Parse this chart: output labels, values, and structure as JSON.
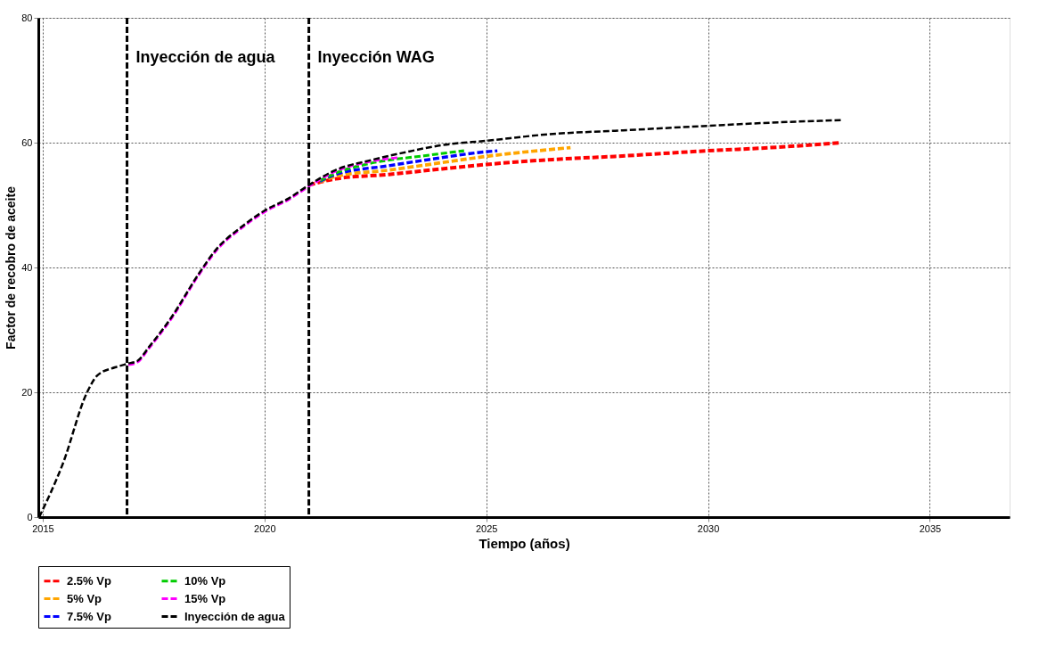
{
  "chart_data": {
    "type": "line",
    "xlabel": "Tiempo (años)",
    "ylabel": "Factor de recobro de aceite",
    "xlim": [
      2014.9,
      2036.8
    ],
    "ylim": [
      0,
      80
    ],
    "xticks": [
      2015,
      2020,
      2025,
      2030,
      2035
    ],
    "yticks": [
      0,
      20,
      40,
      60,
      80
    ],
    "grid": true,
    "legend": "bottom",
    "marker": "none",
    "line_style": "dashed",
    "ref_lines": [
      {
        "axis": "x",
        "value": 2016.9,
        "label": "Inyección de agua",
        "color": "#000000",
        "line_style": "dashed"
      },
      {
        "axis": "x",
        "value": 2021.0,
        "label": "Inyección WAG",
        "color": "#000000",
        "line_style": "dashed"
      }
    ],
    "series": [
      {
        "name": "2.5% Vp",
        "color": "#ff0000",
        "x": [
          2021.0,
          2021.6,
          2022.8,
          2024.0,
          2025.0,
          2026.5,
          2027.9,
          2030.0,
          2031.4,
          2033.0
        ],
        "values": [
          53.2,
          54.2,
          54.9,
          55.8,
          56.5,
          57.3,
          57.8,
          58.7,
          59.2,
          60.0
        ]
      },
      {
        "name": "5% Vp",
        "color": "#ffa500",
        "x": [
          2021.25,
          2021.6,
          2022.8,
          2024.0,
          2025.0,
          2026.9
        ],
        "values": [
          53.7,
          54.6,
          55.6,
          56.8,
          57.8,
          59.2
        ]
      },
      {
        "name": "7.5% Vp",
        "color": "#0000ff",
        "x": [
          2021.25,
          2021.6,
          2022.8,
          2024.0,
          2024.8,
          2025.25
        ],
        "values": [
          53.8,
          54.9,
          56.3,
          57.6,
          58.4,
          58.7
        ]
      },
      {
        "name": "10% Vp",
        "color": "#00cc00",
        "x": [
          2021.25,
          2021.6,
          2022.4,
          2023.6,
          2024.5
        ],
        "values": [
          53.9,
          55.1,
          56.7,
          57.9,
          58.7
        ]
      },
      {
        "name": "15% Vp",
        "color": "#ff00ff",
        "x": [
          2016.93,
          2017.13,
          2017.4,
          2017.9,
          2018.5,
          2018.9,
          2019.5,
          2020.0,
          2020.55,
          2021.0,
          2021.6,
          2022.4,
          2023.0
        ],
        "values": [
          24.4,
          24.8,
          27.1,
          31.8,
          38.6,
          42.6,
          46.4,
          48.9,
          50.9,
          53.0,
          55.4,
          57.0,
          57.6
        ]
      },
      {
        "name": "Inyección de agua",
        "color": "#000000",
        "x": [
          2014.92,
          2015.45,
          2016.0,
          2016.23,
          2016.63,
          2016.93,
          2017.13,
          2017.4,
          2017.9,
          2018.5,
          2018.9,
          2019.5,
          2020.0,
          2020.55,
          2021.0,
          2021.6,
          2022.4,
          2023.2,
          2024.0,
          2025.0,
          2026.5,
          2027.9,
          2030.0,
          2031.4,
          2033.0
        ],
        "values": [
          0,
          8.5,
          20,
          22.7,
          24.0,
          24.6,
          25.0,
          27.3,
          32.0,
          38.8,
          42.8,
          46.6,
          49.1,
          51.1,
          53.2,
          55.6,
          57.2,
          58.5,
          59.6,
          60.3,
          61.4,
          61.9,
          62.7,
          63.2,
          63.6
        ]
      }
    ]
  }
}
